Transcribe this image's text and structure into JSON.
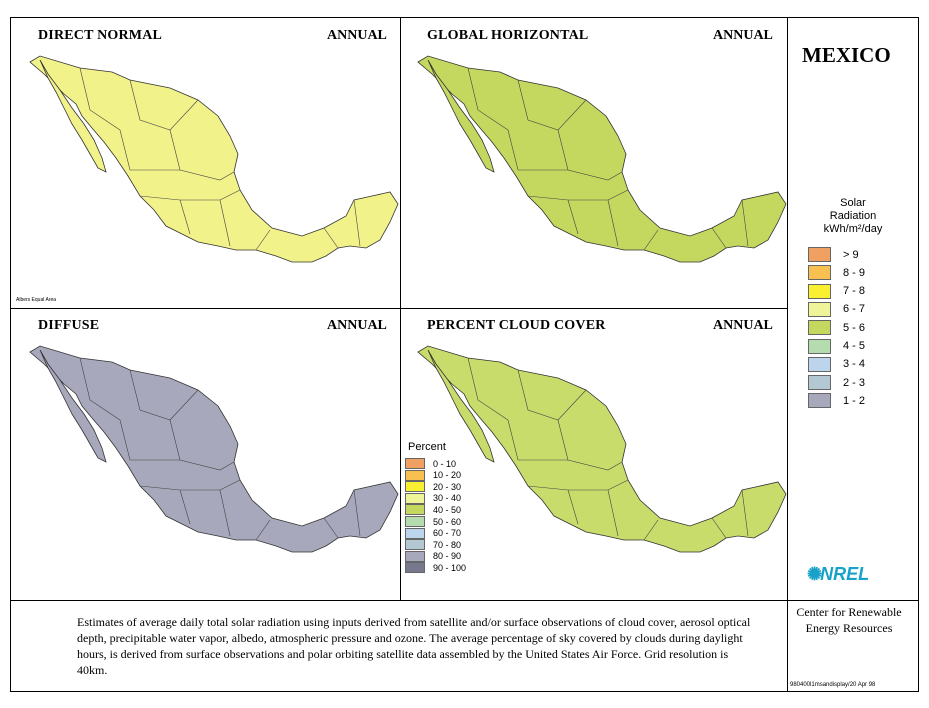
{
  "country": "MEXICO",
  "panels": [
    {
      "title": "DIRECT NORMAL",
      "period": "ANNUAL"
    },
    {
      "title": "GLOBAL HORIZONTAL",
      "period": "ANNUAL"
    },
    {
      "title": "DIFFUSE",
      "period": "ANNUAL"
    },
    {
      "title": "PERCENT CLOUD COVER",
      "period": "ANNUAL"
    }
  ],
  "solar_legend": {
    "title_line1": "Solar",
    "title_line2": "Radiation",
    "title_line3": "kWh/m²/day",
    "items": [
      {
        "label": "> 9",
        "color": "#f0a060"
      },
      {
        "label": "8 - 9",
        "color": "#f8c050"
      },
      {
        "label": "7 - 8",
        "color": "#f8f030"
      },
      {
        "label": "6 - 7",
        "color": "#f0f498"
      },
      {
        "label": "5 - 6",
        "color": "#c4d860"
      },
      {
        "label": "4 - 5",
        "color": "#b4dcae"
      },
      {
        "label": "3 - 4",
        "color": "#bcd4ec"
      },
      {
        "label": "2 - 3",
        "color": "#b4c8d4"
      },
      {
        "label": "1 - 2",
        "color": "#a8a8bc"
      }
    ]
  },
  "percent_legend": {
    "title": "Percent",
    "items": [
      {
        "label": "0 - 10",
        "color": "#f0a060"
      },
      {
        "label": "10 - 20",
        "color": "#f8c050"
      },
      {
        "label": "20 - 30",
        "color": "#f8f030"
      },
      {
        "label": "30 - 40",
        "color": "#f0f498"
      },
      {
        "label": "40 - 50",
        "color": "#c4d860"
      },
      {
        "label": "50 - 60",
        "color": "#b4dcae"
      },
      {
        "label": "60 - 70",
        "color": "#bcd4ec"
      },
      {
        "label": "70 - 80",
        "color": "#b4c8d4"
      },
      {
        "label": "80 - 90",
        "color": "#a8a8bc"
      },
      {
        "label": "90 - 100",
        "color": "#78788c"
      }
    ]
  },
  "projection_note": "Albers Equal Area",
  "description": "Estimates of average daily total solar radiation using inputs derived from satellite and/or surface observations of cloud cover, aerosol optical depth, precipitable water vapor, albedo, atmospheric pressure and ozone.  The average percentage of sky covered by clouds during daylight hours,  is derived from surface observations and polar orbiting satellite data assembled by the United States Air Force.  Grid resolution is 40km.",
  "logo_text": "NREL",
  "org_line1": "Center for Renewable",
  "org_line2": "Energy Resources",
  "map_id": "980400l1msandisplay/20 Apr 98",
  "map_fill_colors": {
    "direct_normal": "#f2f28a",
    "global_horizontal": "#c4d860",
    "diffuse": "#a8a8bc",
    "cloud_cover": "#c8dc6c"
  }
}
